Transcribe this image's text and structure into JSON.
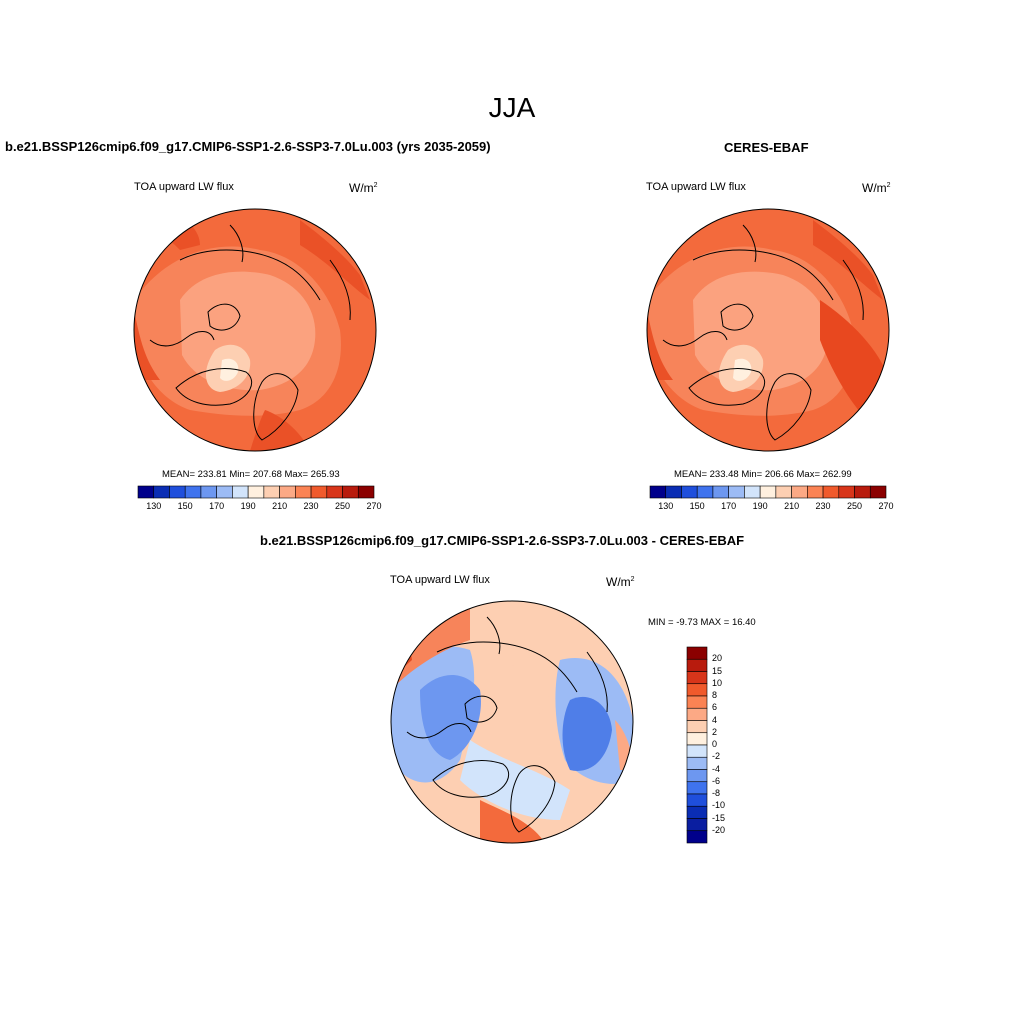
{
  "figure": {
    "season": "JJA"
  },
  "panels": {
    "model": {
      "title": "b.e21.BSSP126cmip6.f09_g17.CMIP6-SSP1-2.6-SSP3-7.0Lu.003 (yrs 2035-2059)",
      "variable": "TOA upward LW flux",
      "units_base": "W/m",
      "units_exp": "2",
      "stats": "MEAN= 233.81  Min= 207.68  Max= 265.93"
    },
    "obs": {
      "title": "CERES-EBAF",
      "variable": "TOA upward LW flux",
      "units_base": "W/m",
      "units_exp": "2",
      "stats": "MEAN= 233.48  Min= 206.66  Max= 262.99"
    },
    "diff": {
      "title": "b.e21.BSSP126cmip6.f09_g17.CMIP6-SSP1-2.6-SSP3-7.0Lu.003 - CERES-EBAF",
      "variable": "TOA upward LW flux",
      "units_base": "W/m",
      "units_exp": "2",
      "minmax": "MIN =  -9.73 MAX =  16.40"
    }
  },
  "abs_colorbar": {
    "colors": [
      "#00008b",
      "#0a2db4",
      "#1f4fdc",
      "#3f73ee",
      "#6d97f0",
      "#9cbbf5",
      "#d2e4fb",
      "#fff0df",
      "#fdcfb2",
      "#fca985",
      "#fb8354",
      "#f05a2c",
      "#d8351a",
      "#b81b0d",
      "#8b0000"
    ],
    "labels": [
      "130",
      "150",
      "170",
      "190",
      "210",
      "230",
      "250",
      "270"
    ]
  },
  "diff_colorbar": {
    "colors": [
      "#8b0000",
      "#b81b0d",
      "#d8351a",
      "#f05a2c",
      "#fb8354",
      "#fca985",
      "#fdcfb2",
      "#fff0df",
      "#d2e4fb",
      "#9cbbf5",
      "#6d97f0",
      "#3f73ee",
      "#1f4fdc",
      "#0a2db4",
      "#0a1ea0",
      "#00008b"
    ],
    "labels": [
      "20",
      "15",
      "10",
      "8",
      "6",
      "4",
      "2",
      "0",
      "-2",
      "-4",
      "-6",
      "-8",
      "-10",
      "-15",
      "-20"
    ]
  }
}
